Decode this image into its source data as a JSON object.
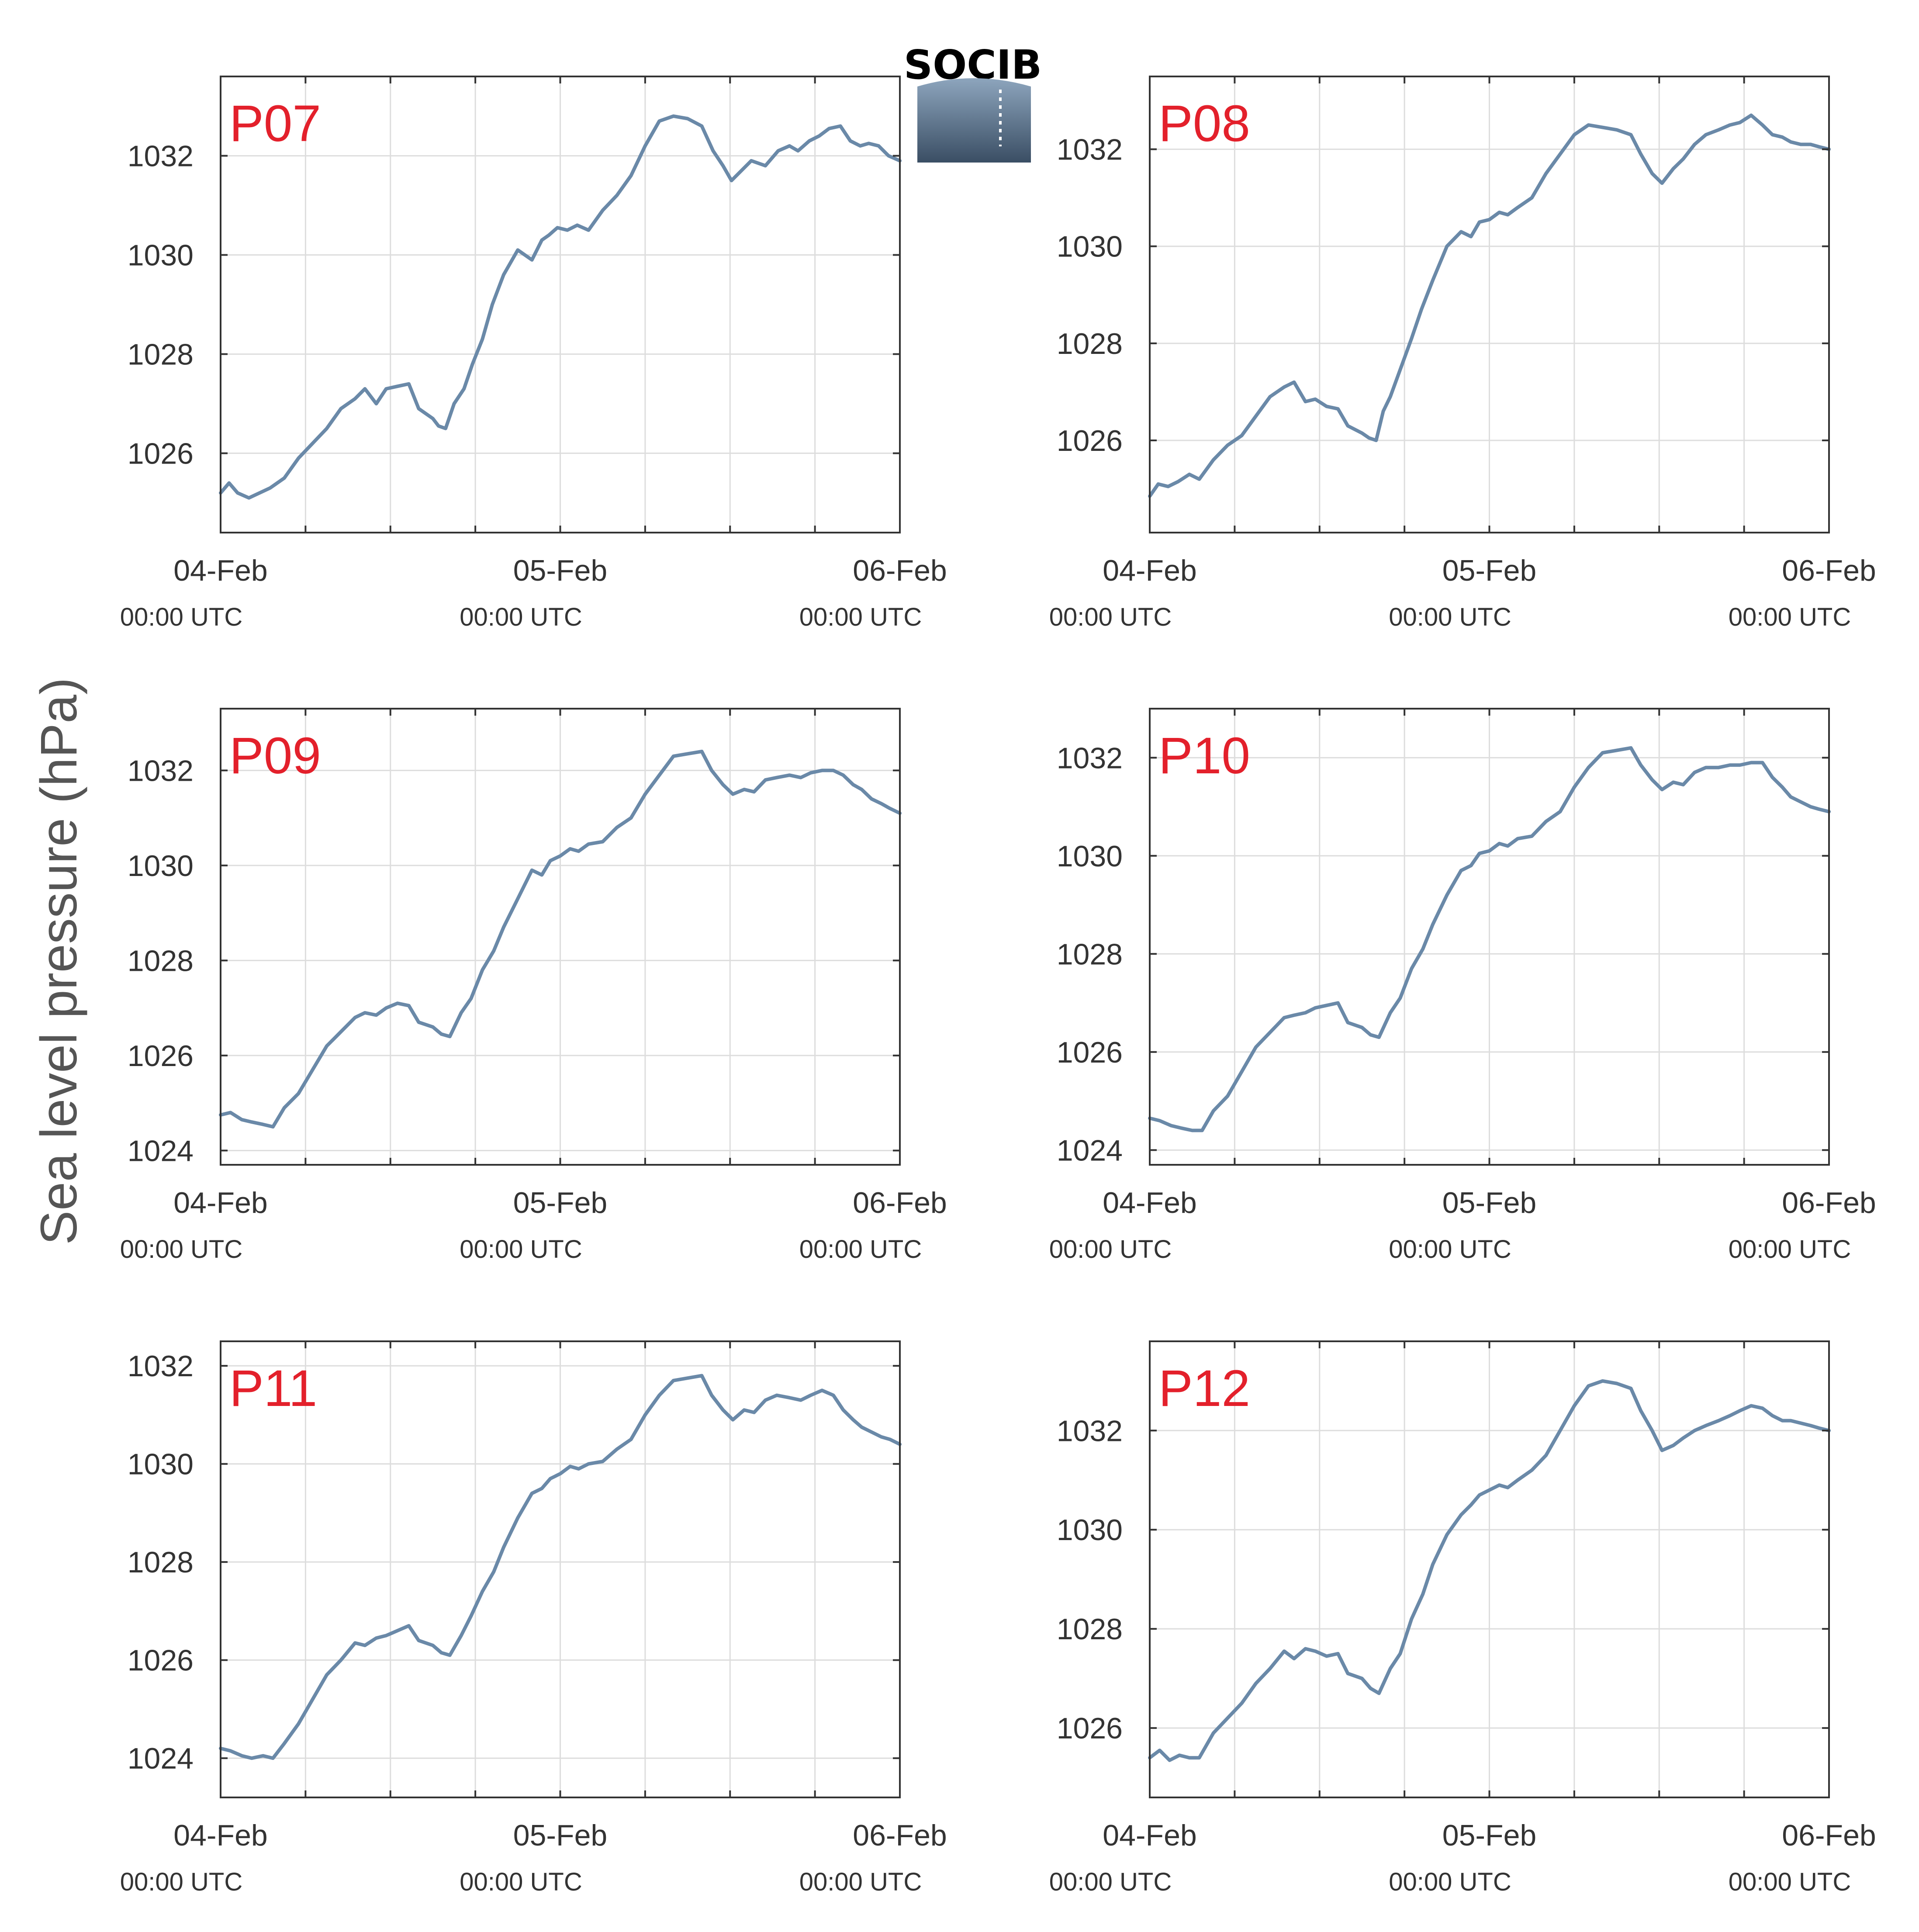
{
  "figure": {
    "ylabel": "Sea level pressure (hPa)",
    "logo_text": "SOCIB"
  },
  "colors": {
    "line": "#6a89a8",
    "panel_label": "#e3202b",
    "grid": "#dddddd",
    "axis": "#333333",
    "logo_text": "#5fa3c9"
  },
  "chart_data": [
    {
      "type": "line",
      "title": "P07",
      "xlabels": [
        {
          "x": 0,
          "date": "04-Feb",
          "time": "00:00 UTC"
        },
        {
          "x": 24,
          "date": "05-Feb",
          "time": "00:00 UTC"
        },
        {
          "x": 48,
          "date": "06-Feb",
          "time": "00:00 UTC"
        }
      ],
      "xlim": [
        0,
        48
      ],
      "xgrid": [
        0,
        6,
        12,
        18,
        24,
        30,
        36,
        42,
        48
      ],
      "ylim": [
        1024.4,
        1033.6
      ],
      "yticks": [
        1026,
        1028,
        1030,
        1032
      ],
      "x": [
        0,
        0.6,
        1.2,
        2,
        3.5,
        4.5,
        5.5,
        6.5,
        7.5,
        8.5,
        9.5,
        10.2,
        11,
        11.7,
        12.5,
        13.3,
        14,
        15,
        15.4,
        15.9,
        16.5,
        17.2,
        17.8,
        18.5,
        19.2,
        20,
        21,
        22,
        22.7,
        23.2,
        23.8,
        24.5,
        25.2,
        26,
        27,
        28,
        29,
        30,
        31,
        32,
        33,
        34,
        34.8,
        35.5,
        36.1,
        36.8,
        37.5,
        38.5,
        39.4,
        40.2,
        40.8,
        41.6,
        42.3,
        43,
        43.8,
        44.5,
        45.2,
        45.8,
        46.5,
        47.2,
        48
      ],
      "y": [
        1025.2,
        1025.4,
        1025.2,
        1025.1,
        1025.3,
        1025.5,
        1025.9,
        1026.2,
        1026.5,
        1026.9,
        1027.1,
        1027.3,
        1027.0,
        1027.3,
        1027.35,
        1027.4,
        1026.9,
        1026.7,
        1026.55,
        1026.5,
        1027.0,
        1027.3,
        1027.8,
        1028.3,
        1029.0,
        1029.6,
        1030.1,
        1029.9,
        1030.3,
        1030.4,
        1030.55,
        1030.5,
        1030.6,
        1030.5,
        1030.9,
        1031.2,
        1031.6,
        1032.2,
        1032.7,
        1032.8,
        1032.75,
        1032.6,
        1032.1,
        1031.8,
        1031.5,
        1031.7,
        1031.9,
        1031.8,
        1032.1,
        1032.2,
        1032.1,
        1032.3,
        1032.4,
        1032.55,
        1032.6,
        1032.3,
        1032.2,
        1032.25,
        1032.2,
        1032.0,
        1031.9
      ]
    },
    {
      "type": "line",
      "title": "P08",
      "xlabels": [
        {
          "x": 0,
          "date": "04-Feb",
          "time": "00:00 UTC"
        },
        {
          "x": 24,
          "date": "05-Feb",
          "time": "00:00 UTC"
        },
        {
          "x": 48,
          "date": "06-Feb",
          "time": "00:00 UTC"
        }
      ],
      "xlim": [
        0,
        48
      ],
      "xgrid": [
        0,
        6,
        12,
        18,
        24,
        30,
        36,
        42,
        48
      ],
      "ylim": [
        1024.1,
        1033.5
      ],
      "yticks": [
        1026,
        1028,
        1030,
        1032
      ],
      "x": [
        0,
        0.6,
        1.3,
        2,
        2.8,
        3.5,
        4.5,
        5.5,
        6.5,
        7.5,
        8.5,
        9.5,
        10.2,
        11,
        11.7,
        12.5,
        13.3,
        14,
        15,
        15.5,
        16,
        16.5,
        17,
        17.5,
        18,
        18.5,
        19.2,
        20,
        21,
        22,
        22.7,
        23.3,
        24,
        24.7,
        25.3,
        26,
        27,
        28,
        29,
        30,
        31,
        32,
        33,
        34,
        34.7,
        35.5,
        36.2,
        37,
        37.7,
        38.5,
        39.3,
        40.2,
        41,
        41.7,
        42.5,
        43.3,
        44,
        44.7,
        45.3,
        46,
        46.7,
        47.3,
        48
      ],
      "y": [
        1024.85,
        1025.1,
        1025.05,
        1025.15,
        1025.3,
        1025.2,
        1025.6,
        1025.9,
        1026.1,
        1026.5,
        1026.9,
        1027.1,
        1027.2,
        1026.8,
        1026.85,
        1026.7,
        1026.65,
        1026.3,
        1026.15,
        1026.05,
        1026.0,
        1026.6,
        1026.9,
        1027.3,
        1027.7,
        1028.1,
        1028.7,
        1029.3,
        1030.0,
        1030.3,
        1030.2,
        1030.5,
        1030.55,
        1030.7,
        1030.65,
        1030.8,
        1031.0,
        1031.5,
        1031.9,
        1032.3,
        1032.5,
        1032.45,
        1032.4,
        1032.3,
        1031.9,
        1031.5,
        1031.3,
        1031.6,
        1031.8,
        1032.1,
        1032.3,
        1032.4,
        1032.5,
        1032.55,
        1032.7,
        1032.5,
        1032.3,
        1032.25,
        1032.15,
        1032.1,
        1032.1,
        1032.05,
        1032.0
      ]
    },
    {
      "type": "line",
      "title": "P09",
      "xlabels": [
        {
          "x": 0,
          "date": "04-Feb",
          "time": "00:00 UTC"
        },
        {
          "x": 24,
          "date": "05-Feb",
          "time": "00:00 UTC"
        },
        {
          "x": 48,
          "date": "06-Feb",
          "time": "00:00 UTC"
        }
      ],
      "xlim": [
        0,
        48
      ],
      "xgrid": [
        0,
        6,
        12,
        18,
        24,
        30,
        36,
        42,
        48
      ],
      "ylim": [
        1023.7,
        1033.3
      ],
      "yticks": [
        1024,
        1026,
        1028,
        1030,
        1032
      ],
      "x": [
        0,
        0.7,
        1.5,
        2.2,
        3,
        3.7,
        4.5,
        5.5,
        6.5,
        7.5,
        8.5,
        9.5,
        10.2,
        11,
        11.7,
        12.5,
        13.3,
        14,
        15,
        15.6,
        16.2,
        17,
        17.7,
        18.5,
        19.3,
        20,
        21,
        22,
        22.7,
        23.3,
        24,
        24.7,
        25.3,
        26,
        27,
        28,
        29,
        30,
        31,
        32,
        33,
        34,
        34.7,
        35.5,
        36.2,
        37,
        37.7,
        38.5,
        39.3,
        40.2,
        41,
        41.7,
        42.5,
        43.3,
        44,
        44.7,
        45.3,
        46,
        46.7,
        47.3,
        48
      ],
      "y": [
        1024.75,
        1024.8,
        1024.65,
        1024.6,
        1024.55,
        1024.5,
        1024.9,
        1025.2,
        1025.7,
        1026.2,
        1026.5,
        1026.8,
        1026.9,
        1026.85,
        1027.0,
        1027.1,
        1027.05,
        1026.7,
        1026.6,
        1026.45,
        1026.4,
        1026.9,
        1027.2,
        1027.8,
        1028.2,
        1028.7,
        1029.3,
        1029.9,
        1029.8,
        1030.1,
        1030.2,
        1030.35,
        1030.3,
        1030.45,
        1030.5,
        1030.8,
        1031.0,
        1031.5,
        1031.9,
        1032.3,
        1032.35,
        1032.4,
        1032.0,
        1031.7,
        1031.5,
        1031.6,
        1031.55,
        1031.8,
        1031.85,
        1031.9,
        1031.85,
        1031.95,
        1032.0,
        1032.0,
        1031.9,
        1031.7,
        1031.6,
        1031.4,
        1031.3,
        1031.2,
        1031.1
      ]
    },
    {
      "type": "line",
      "title": "P10",
      "xlabels": [
        {
          "x": 0,
          "date": "04-Feb",
          "time": "00:00 UTC"
        },
        {
          "x": 24,
          "date": "05-Feb",
          "time": "00:00 UTC"
        },
        {
          "x": 48,
          "date": "06-Feb",
          "time": "00:00 UTC"
        }
      ],
      "xlim": [
        0,
        48
      ],
      "xgrid": [
        0,
        6,
        12,
        18,
        24,
        30,
        36,
        42,
        48
      ],
      "ylim": [
        1023.7,
        1033.0
      ],
      "yticks": [
        1024,
        1026,
        1028,
        1030,
        1032
      ],
      "x": [
        0,
        0.7,
        1.5,
        2.2,
        3,
        3.7,
        4.5,
        5.5,
        6.5,
        7.5,
        8.5,
        9.5,
        10.2,
        11,
        11.7,
        12.5,
        13.3,
        14,
        15,
        15.6,
        16.2,
        17,
        17.7,
        18.5,
        19.3,
        20,
        21,
        22,
        22.7,
        23.3,
        24,
        24.7,
        25.3,
        26,
        27,
        28,
        29,
        30,
        31,
        32,
        33,
        34,
        34.7,
        35.5,
        36.2,
        37,
        37.7,
        38.5,
        39.3,
        40.2,
        41,
        41.7,
        42.5,
        43.3,
        44,
        44.7,
        45.3,
        46,
        46.7,
        47.3,
        48
      ],
      "y": [
        1024.65,
        1024.6,
        1024.5,
        1024.45,
        1024.4,
        1024.4,
        1024.8,
        1025.1,
        1025.6,
        1026.1,
        1026.4,
        1026.7,
        1026.75,
        1026.8,
        1026.9,
        1026.95,
        1027.0,
        1026.6,
        1026.5,
        1026.35,
        1026.3,
        1026.8,
        1027.1,
        1027.7,
        1028.1,
        1028.6,
        1029.2,
        1029.7,
        1029.8,
        1030.05,
        1030.1,
        1030.25,
        1030.2,
        1030.35,
        1030.4,
        1030.7,
        1030.9,
        1031.4,
        1031.8,
        1032.1,
        1032.15,
        1032.2,
        1031.85,
        1031.55,
        1031.35,
        1031.5,
        1031.45,
        1031.7,
        1031.8,
        1031.8,
        1031.85,
        1031.85,
        1031.9,
        1031.9,
        1031.6,
        1031.4,
        1031.2,
        1031.1,
        1031.0,
        1030.95,
        1030.9
      ]
    },
    {
      "type": "line",
      "title": "P11",
      "xlabels": [
        {
          "x": 0,
          "date": "04-Feb",
          "time": "00:00 UTC"
        },
        {
          "x": 24,
          "date": "05-Feb",
          "time": "00:00 UTC"
        },
        {
          "x": 48,
          "date": "06-Feb",
          "time": "00:00 UTC"
        }
      ],
      "xlim": [
        0,
        48
      ],
      "xgrid": [
        0,
        6,
        12,
        18,
        24,
        30,
        36,
        42,
        48
      ],
      "ylim": [
        1023.2,
        1032.5
      ],
      "yticks": [
        1024,
        1026,
        1028,
        1030,
        1032
      ],
      "x": [
        0,
        0.7,
        1.5,
        2.2,
        3,
        3.7,
        4.5,
        5.5,
        6.5,
        7.5,
        8.5,
        9.5,
        10.2,
        11,
        11.7,
        12.5,
        13.3,
        14,
        15,
        15.6,
        16.2,
        17,
        17.7,
        18.5,
        19.3,
        20,
        21,
        22,
        22.7,
        23.3,
        24,
        24.7,
        25.3,
        26,
        27,
        28,
        29,
        30,
        31,
        32,
        33,
        34,
        34.7,
        35.5,
        36.2,
        37,
        37.7,
        38.5,
        39.3,
        40.2,
        41,
        41.7,
        42.5,
        43.3,
        44,
        44.7,
        45.3,
        46,
        46.7,
        47.3,
        48
      ],
      "y": [
        1024.2,
        1024.15,
        1024.05,
        1024.0,
        1024.05,
        1024.0,
        1024.3,
        1024.7,
        1025.2,
        1025.7,
        1026.0,
        1026.35,
        1026.3,
        1026.45,
        1026.5,
        1026.6,
        1026.7,
        1026.4,
        1026.3,
        1026.15,
        1026.1,
        1026.5,
        1026.9,
        1027.4,
        1027.8,
        1028.3,
        1028.9,
        1029.4,
        1029.5,
        1029.7,
        1029.8,
        1029.95,
        1029.9,
        1030.0,
        1030.05,
        1030.3,
        1030.5,
        1031.0,
        1031.4,
        1031.7,
        1031.75,
        1031.8,
        1031.4,
        1031.1,
        1030.9,
        1031.1,
        1031.05,
        1031.3,
        1031.4,
        1031.35,
        1031.3,
        1031.4,
        1031.5,
        1031.4,
        1031.1,
        1030.9,
        1030.75,
        1030.65,
        1030.55,
        1030.5,
        1030.4
      ]
    },
    {
      "type": "line",
      "title": "P12",
      "xlabels": [
        {
          "x": 0,
          "date": "04-Feb",
          "time": "00:00 UTC"
        },
        {
          "x": 24,
          "date": "05-Feb",
          "time": "00:00 UTC"
        },
        {
          "x": 48,
          "date": "06-Feb",
          "time": "00:00 UTC"
        }
      ],
      "xlim": [
        0,
        48
      ],
      "xgrid": [
        0,
        6,
        12,
        18,
        24,
        30,
        36,
        42,
        48
      ],
      "ylim": [
        1024.6,
        1033.8
      ],
      "yticks": [
        1026,
        1028,
        1030,
        1032
      ],
      "x": [
        0,
        0.7,
        1.4,
        2.1,
        2.8,
        3.5,
        4.5,
        5.5,
        6.5,
        7.5,
        8.5,
        9.5,
        10.2,
        11,
        11.7,
        12.5,
        13.3,
        14,
        15,
        15.6,
        16.2,
        17,
        17.7,
        18.5,
        19.3,
        20,
        21,
        22,
        22.7,
        23.3,
        24,
        24.7,
        25.3,
        26,
        27,
        28,
        29,
        30,
        31,
        32,
        33,
        34,
        34.7,
        35.5,
        36.2,
        37,
        37.7,
        38.5,
        39.3,
        40.2,
        41,
        41.7,
        42.5,
        43.3,
        44,
        44.7,
        45.3,
        46,
        46.7,
        47.3,
        48
      ],
      "y": [
        1025.4,
        1025.55,
        1025.35,
        1025.45,
        1025.4,
        1025.4,
        1025.9,
        1026.2,
        1026.5,
        1026.9,
        1027.2,
        1027.55,
        1027.4,
        1027.6,
        1027.55,
        1027.45,
        1027.5,
        1027.1,
        1027.0,
        1026.8,
        1026.7,
        1027.2,
        1027.5,
        1028.2,
        1028.7,
        1029.3,
        1029.9,
        1030.3,
        1030.5,
        1030.7,
        1030.8,
        1030.9,
        1030.85,
        1031.0,
        1031.2,
        1031.5,
        1032.0,
        1032.5,
        1032.9,
        1033.0,
        1032.95,
        1032.85,
        1032.4,
        1032.0,
        1031.6,
        1031.7,
        1031.85,
        1032.0,
        1032.1,
        1032.2,
        1032.3,
        1032.4,
        1032.5,
        1032.45,
        1032.3,
        1032.2,
        1032.2,
        1032.15,
        1032.1,
        1032.05,
        1032.0
      ]
    }
  ]
}
